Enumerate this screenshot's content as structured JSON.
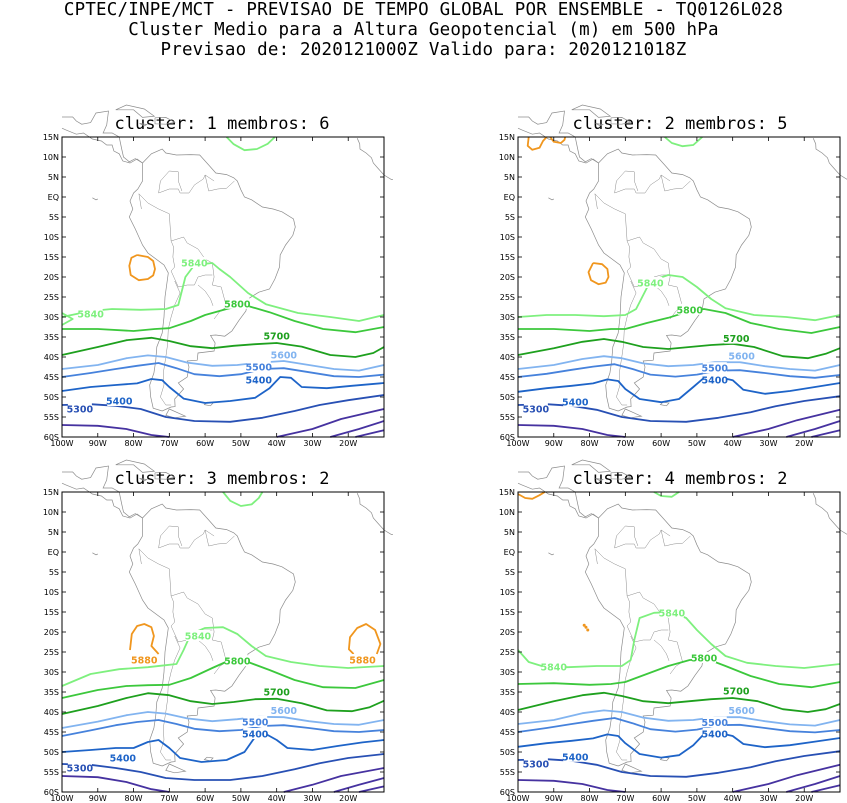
{
  "header": {
    "line1": "CPTEC/INPE/MCT - PREVISAO DE TEMPO GLOBAL POR ENSEMBLE - TQ0126L028",
    "line2": "Cluster Medio para a Altura Geopotencial (m) em 500 hPa",
    "line3": "Previsao de: 2020121000Z   Valido para: 2020121018Z"
  },
  "axes": {
    "lat_labels": [
      "15N",
      "10N",
      "5N",
      "EQ",
      "5S",
      "10S",
      "15S",
      "20S",
      "25S",
      "30S",
      "35S",
      "40S",
      "45S",
      "50S",
      "55S",
      "60S"
    ],
    "lon_labels": [
      "100W",
      "90W",
      "80W",
      "70W",
      "60W",
      "50W",
      "40W",
      "30W",
      "20W"
    ]
  },
  "colors": {
    "c5840": "#7ef07e",
    "c5800": "#3cc83c",
    "c5700": "#1ea01e",
    "c5600": "#82b4f0",
    "c5500": "#4682dc",
    "c5400": "#1e64c8",
    "c5300": "#2850b4",
    "c5200": "#4632a0",
    "c5880": "#f0961e",
    "land": "#8c8c8c"
  },
  "panels": [
    {
      "title": "cluster: 1   membros: 6",
      "labels": {
        "l5840a": "5840",
        "l5840b": "5840",
        "l5800": "5800",
        "l5700": "5700",
        "l5600": "5600",
        "l5500": "5500",
        "l5400a": "5400",
        "l5400b": "5400",
        "l5300": "5300"
      }
    },
    {
      "title": "cluster: 2   membros: 5",
      "labels": {
        "l5840b": "5840",
        "l5800": "5800",
        "l5700": "5700",
        "l5600": "5600",
        "l5500": "5500",
        "l5400a": "5400",
        "l5400b": "5400",
        "l5300": "5300"
      }
    },
    {
      "title": "cluster: 3   membros: 2",
      "labels": {
        "l5840b": "5840",
        "l5800": "5800",
        "l5700": "5700",
        "l5600": "5600",
        "l5500": "5500",
        "l5400a": "5400",
        "l5400b": "5400",
        "l5300": "5300",
        "l5880a": "5880",
        "l5880b": "5880"
      }
    },
    {
      "title": "cluster: 4   membros: 2",
      "labels": {
        "l5840a": "5840",
        "l5840b": "5840",
        "l5800": "5800",
        "l5700": "5700",
        "l5600": "5600",
        "l5500": "5500",
        "l5400a": "5400",
        "l5400b": "5400",
        "l5300": "5300"
      }
    }
  ]
}
